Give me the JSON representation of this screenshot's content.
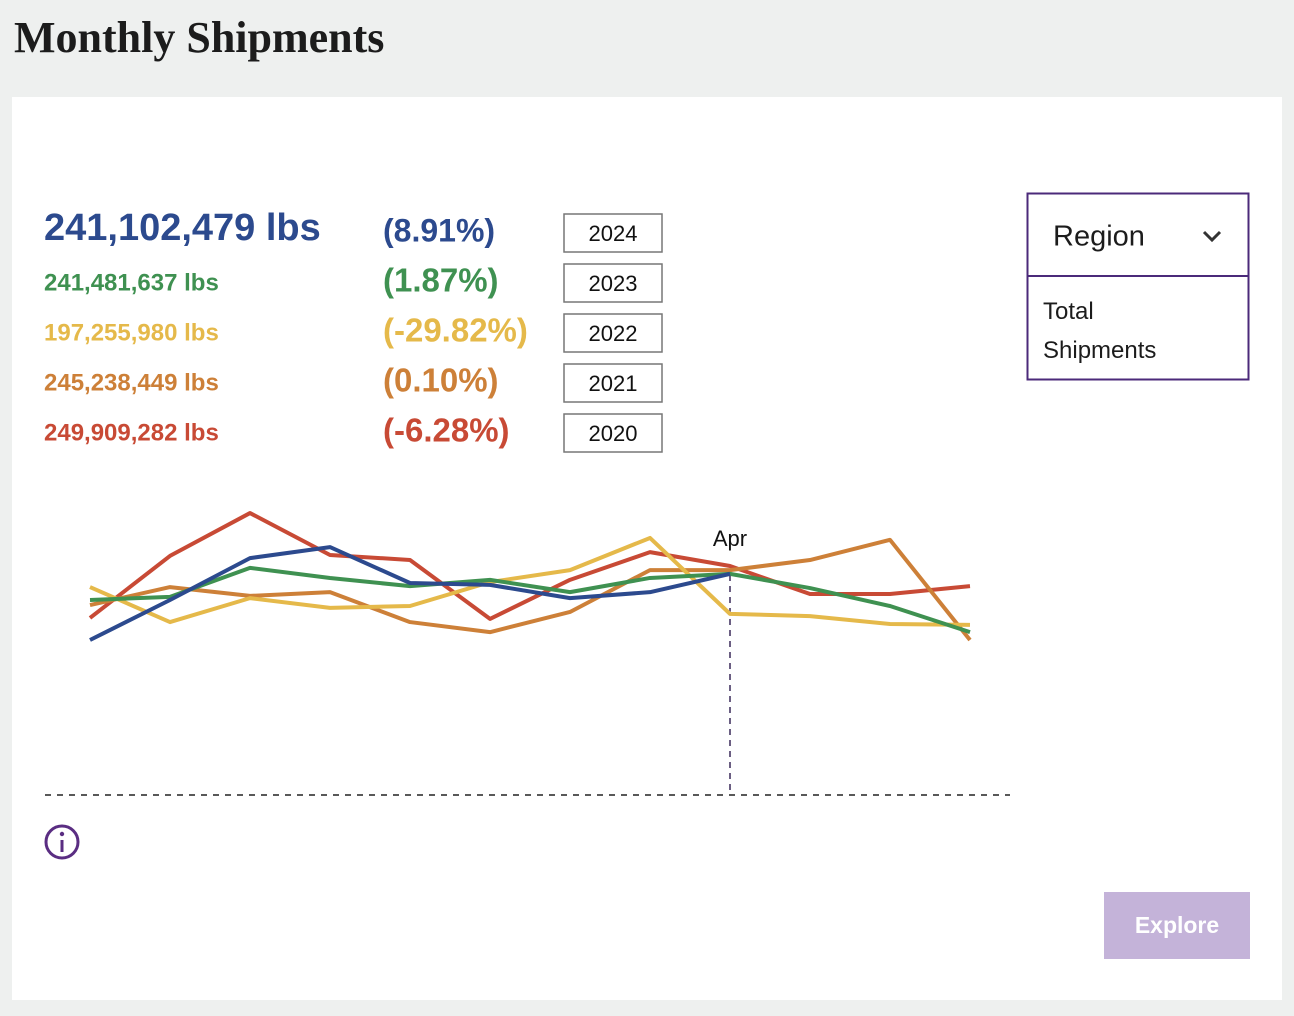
{
  "header": {
    "title": "Monthly Shipments"
  },
  "chart_data": {
    "type": "line",
    "categories": [
      null,
      null,
      null,
      null,
      null,
      null,
      null,
      null,
      "Apr",
      null,
      null,
      null
    ],
    "highlight_index": 8,
    "ylim": [
      0,
      100
    ],
    "series": [
      {
        "name": "2024",
        "color": "#2c4a8e",
        "total": "241,102,479 lbs",
        "change": "(8.91%)",
        "values": [
          49.2,
          61.9,
          75.2,
          78.7,
          67.3,
          66.7,
          62.5,
          64.4,
          70.2,
          null,
          null,
          null
        ]
      },
      {
        "name": "2023",
        "color": "#3f9151",
        "total": "241,481,637 lbs",
        "change": "(1.87%)",
        "values": [
          61.9,
          62.9,
          72.1,
          68.9,
          66.3,
          68.3,
          64.4,
          68.9,
          70.2,
          65.7,
          60.0,
          51.7
        ]
      },
      {
        "name": "2022",
        "color": "#e5b94a",
        "total": "197,255,980 lbs",
        "change": "(-29.82%)",
        "values": [
          66.0,
          54.9,
          62.5,
          59.4,
          60.0,
          67.6,
          71.4,
          81.6,
          57.5,
          56.8,
          54.3,
          54.0
        ]
      },
      {
        "name": "2021",
        "color": "#cd8038",
        "total": "245,238,449 lbs",
        "change": "(0.10%)",
        "values": [
          60.3,
          66.0,
          63.2,
          64.4,
          54.9,
          51.7,
          58.1,
          71.4,
          71.4,
          74.6,
          81.0,
          49.2
        ]
      },
      {
        "name": "2020",
        "color": "#c84a35",
        "total": "249,909,282 lbs",
        "change": "(-6.28%)",
        "values": [
          56.2,
          75.9,
          89.5,
          76.2,
          74.6,
          55.9,
          68.3,
          77.1,
          72.7,
          63.8,
          63.8,
          66.3
        ]
      }
    ]
  },
  "region": {
    "label": "Region",
    "options": [
      "Total Shipments"
    ]
  },
  "button": "Explore"
}
